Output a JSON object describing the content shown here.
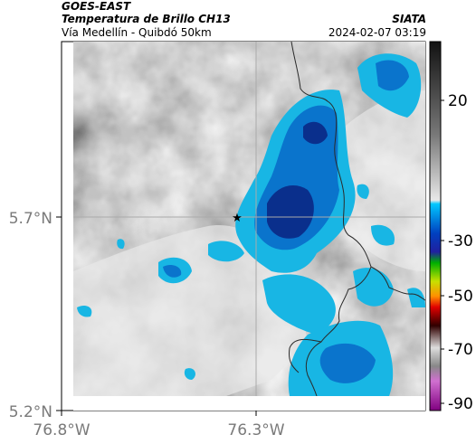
{
  "header": {
    "satellite": "GOES-EAST",
    "product": "Temperatura de Brillo CH13",
    "region": "Vía Medellín - Quibdó 50km",
    "source": "SIATA",
    "datetime": "2024-02-07 03:19"
  },
  "axes": {
    "y_ticks": [
      {
        "label": "5.7°N",
        "value": 5.7
      },
      {
        "label": "5.2°N",
        "value": 5.2
      }
    ],
    "x_ticks": [
      {
        "label": "76.8°W",
        "value": -76.8
      },
      {
        "label": "76.3°W",
        "value": -76.3
      }
    ]
  },
  "colorbar": {
    "ticks": [
      {
        "label": "20",
        "value": 20
      },
      {
        "label": "-30",
        "value": -30
      },
      {
        "label": "-50",
        "value": -50
      },
      {
        "label": "-70",
        "value": -70
      },
      {
        "label": "-90",
        "value": -90
      }
    ]
  },
  "marker": {
    "symbol": "★"
  },
  "colors": {
    "cold_cloud_dark": "#0a2f8c",
    "cold_cloud_mid": "#0a6cc8",
    "cold_cloud_light": "#19b9e6",
    "warm_gray": "#8a8a8a",
    "clear": "#f2f2f2"
  }
}
